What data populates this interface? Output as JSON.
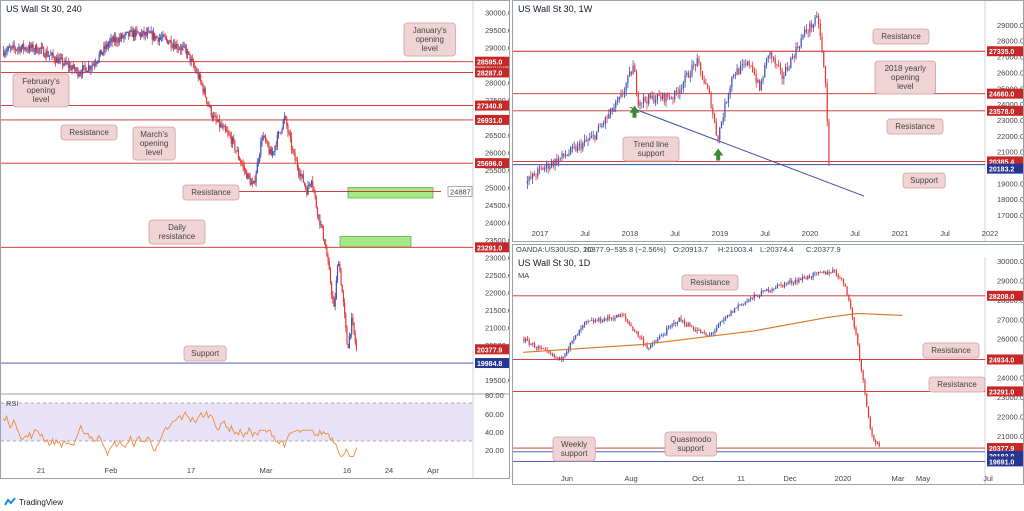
{
  "branding": {
    "logo_text": "TradingView",
    "logo_color": "#1e88e5"
  },
  "colors": {
    "bull": "#3f51b5",
    "bear": "#e53935",
    "resistance_line": "#c62828",
    "support_line": "#3949ab",
    "note_bg": "#f0d4d4",
    "note_border": "#cf9f9f",
    "zone_fill": "#a5e887",
    "rsi_band": "#e8e3f8",
    "rsi_line": "#ef8a3b",
    "ma_line": "#d9792a"
  },
  "charts": {
    "h4": {
      "title": "US Wall St 30, 240",
      "y_ticks": [
        "30000.0",
        "29500.0",
        "29000.0",
        "28500.0",
        "28000.0",
        "27500.0",
        "27000.0",
        "26500.0",
        "26000.0",
        "25500.0",
        "25000.0",
        "24500.0",
        "24000.0",
        "23500.0",
        "23000.0",
        "22500.0",
        "22000.0",
        "21500.0",
        "21000.0",
        "20500.0",
        "20000.0",
        "19500.0"
      ],
      "x_ticks": [
        "21",
        "Feb",
        "17",
        "Mar",
        "16",
        "24",
        "Apr"
      ],
      "rsi_label": "RSI",
      "rsi_ticks": [
        "80.00",
        "60.00",
        "40.00",
        "20.00"
      ],
      "price_labels": [
        {
          "text": "28595.0",
          "type": "res"
        },
        {
          "text": "28287.0",
          "type": "res"
        },
        {
          "text": "27340.8",
          "type": "res"
        },
        {
          "text": "26931.0",
          "type": "res"
        },
        {
          "text": "25696.0",
          "type": "res"
        },
        {
          "text": "23291.0",
          "type": "res"
        },
        {
          "text": "20377.9",
          "type": "res"
        },
        {
          "text": "19984.8",
          "type": "sup"
        }
      ],
      "zone_value_label": "24887",
      "annotations": [
        "January's opening level",
        "February's opening level",
        "Resistance",
        "March's opening level",
        "Resistance",
        "Daily resistance",
        "Support"
      ]
    },
    "weekly": {
      "title": "US Wall St 30, 1W",
      "y_ticks": [
        "29000.0",
        "28000.0",
        "27000.0",
        "26000.0",
        "25000.0",
        "24000.0",
        "23000.0",
        "22000.0",
        "21000.0",
        "20000.0",
        "19000.0",
        "18000.0",
        "17000.0"
      ],
      "x_ticks": [
        "2017",
        "Jul",
        "2018",
        "Jul",
        "2019",
        "Jul",
        "2020",
        "Jul",
        "2021",
        "Jul",
        "2022"
      ],
      "price_labels": [
        {
          "text": "27335.0",
          "type": "res"
        },
        {
          "text": "24660.0",
          "type": "res"
        },
        {
          "text": "23578.0",
          "type": "res"
        },
        {
          "text": "20385.4",
          "type": "res"
        },
        {
          "text": "20183.2",
          "type": "sup"
        }
      ],
      "annotations": [
        "Resistance",
        "2018 yearly opening level",
        "Resistance",
        "Trend line support",
        "Support"
      ]
    },
    "daily": {
      "title": "US Wall St 30, 1D",
      "ma_label": "MA",
      "header": {
        "symbol": "OANDA:US30USD, 1D",
        "last": "20377.9",
        "change": "−535.8 (−2.56%)",
        "o": "O:20913.7",
        "h": "H:21003.4",
        "l": "L:20374.4",
        "c": "C:20377.9"
      },
      "y_ticks": [
        "30000.0",
        "29000.0",
        "28000.0",
        "27000.0",
        "26000.0",
        "25000.0",
        "24000.0",
        "23000.0",
        "22000.0",
        "21000.0",
        "20000.0"
      ],
      "x_ticks": [
        "Jun",
        "Aug",
        "Oct",
        "11",
        "Dec",
        "2020",
        "Mar",
        "May",
        "Jul"
      ],
      "price_labels": [
        {
          "text": "28208.0",
          "type": "res"
        },
        {
          "text": "24934.0",
          "type": "res"
        },
        {
          "text": "23291.0",
          "type": "res"
        },
        {
          "text": "20377.9",
          "type": "res"
        },
        {
          "text": "20183.0",
          "type": "sup"
        },
        {
          "text": "19691.0",
          "type": "sup"
        }
      ],
      "annotations": [
        "Resistance",
        "Resistance",
        "Resistance",
        "Weekly support",
        "Quasimodo support"
      ]
    }
  },
  "chart_data": [
    {
      "type": "candlestick",
      "name": "US Wall St 30, 240",
      "ylim": [
        19300,
        30100
      ],
      "path": [
        [
          0,
          28900
        ],
        [
          4,
          29000
        ],
        [
          8,
          28960
        ],
        [
          13,
          28600
        ],
        [
          17,
          28300
        ],
        [
          20,
          28500
        ],
        [
          24,
          29150
        ],
        [
          29,
          29400
        ],
        [
          33,
          29350
        ],
        [
          37,
          29200
        ],
        [
          41,
          28900
        ],
        [
          44,
          28100
        ],
        [
          47,
          27000
        ],
        [
          51,
          26400
        ],
        [
          54,
          25500
        ],
        [
          56,
          25000
        ],
        [
          58,
          26500
        ],
        [
          60,
          25900
        ],
        [
          63,
          27000
        ],
        [
          65,
          25900
        ],
        [
          68,
          24900
        ],
        [
          69,
          25300
        ],
        [
          70,
          24500
        ],
        [
          72,
          23400
        ],
        [
          73,
          22500
        ],
        [
          74,
          21500
        ],
        [
          75,
          23000
        ],
        [
          76,
          21800
        ],
        [
          77,
          20400
        ],
        [
          78,
          21200
        ],
        [
          79,
          20377
        ]
      ],
      "horizontal_levels": [
        28595,
        28287,
        27340.8,
        26931,
        25696,
        24887,
        23291,
        19984.8
      ],
      "zones": [
        [
          24700,
          25000
        ],
        [
          23300,
          23600
        ]
      ]
    },
    {
      "type": "candlestick",
      "name": "US Wall St 30, 1W",
      "ylim": [
        16500,
        30000
      ],
      "path": [
        [
          2016.85,
          19000
        ],
        [
          2017.0,
          19800
        ],
        [
          2017.3,
          20800
        ],
        [
          2017.6,
          21900
        ],
        [
          2017.9,
          24300
        ],
        [
          2018.05,
          26400
        ],
        [
          2018.1,
          24200
        ],
        [
          2018.3,
          24400
        ],
        [
          2018.5,
          24500
        ],
        [
          2018.75,
          26700
        ],
        [
          2018.9,
          24400
        ],
        [
          2018.98,
          21800
        ],
        [
          2019.15,
          25900
        ],
        [
          2019.35,
          26600
        ],
        [
          2019.45,
          24900
        ],
        [
          2019.55,
          27300
        ],
        [
          2019.7,
          25700
        ],
        [
          2019.95,
          28500
        ],
        [
          2020.1,
          29400
        ],
        [
          2020.18,
          25400
        ],
        [
          2020.22,
          20385
        ]
      ],
      "horizontal_levels": [
        27335,
        24660,
        23578,
        20385.4,
        20183.2
      ],
      "trend_line": [
        [
          2018.0,
          23800
        ],
        [
          2020.6,
          18200
        ]
      ]
    },
    {
      "type": "candlestick",
      "name": "US Wall St 30, 1D",
      "ylim": [
        19300,
        30100
      ],
      "path": [
        [
          2019.28,
          26000
        ],
        [
          2019.38,
          24900
        ],
        [
          2019.45,
          26800
        ],
        [
          2019.55,
          27200
        ],
        [
          2019.62,
          25500
        ],
        [
          2019.7,
          27000
        ],
        [
          2019.78,
          26100
        ],
        [
          2019.86,
          27700
        ],
        [
          2019.95,
          28600
        ],
        [
          2020.05,
          29200
        ],
        [
          2020.12,
          29500
        ],
        [
          2020.15,
          28700
        ],
        [
          2020.18,
          26000
        ],
        [
          2020.2,
          23400
        ],
        [
          2020.22,
          21000
        ],
        [
          2020.24,
          20377
        ]
      ],
      "ma": [
        [
          2019.28,
          25300
        ],
        [
          2019.6,
          25700
        ],
        [
          2019.9,
          26400
        ],
        [
          2020.1,
          27100
        ],
        [
          2020.18,
          27300
        ],
        [
          2020.3,
          27200
        ]
      ],
      "horizontal_levels": [
        28208,
        24934,
        23291,
        20377.9,
        20183,
        19691
      ]
    }
  ]
}
